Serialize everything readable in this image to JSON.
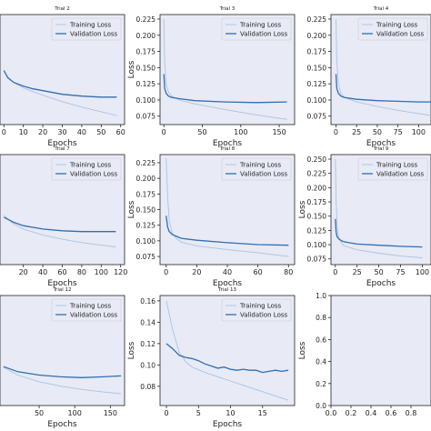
{
  "colors": {
    "panel_bg": "#e8eaf6",
    "training": "#a9c4e0",
    "validation": "#2f6fb0",
    "axis": "#222222"
  },
  "chart_data": [
    {
      "type": "line",
      "title": "Trial 2",
      "xlabel": "Epochs",
      "ylabel": "",
      "xlim": [
        -2,
        62
      ],
      "ylim": [
        0.035,
        0.155
      ],
      "xticks": [
        0,
        10,
        20,
        30,
        40,
        50,
        60
      ],
      "yticks": [],
      "legend": "top-right",
      "series": [
        {
          "name": "Training Loss",
          "x": [
            0,
            2,
            5,
            10,
            15,
            20,
            30,
            40,
            50,
            58
          ],
          "y": [
            0.093,
            0.087,
            0.081,
            0.075,
            0.071,
            0.067,
            0.06,
            0.054,
            0.049,
            0.045
          ]
        },
        {
          "name": "Validation Loss",
          "x": [
            0,
            2,
            5,
            10,
            15,
            20,
            30,
            40,
            50,
            58
          ],
          "y": [
            0.094,
            0.086,
            0.081,
            0.077,
            0.074,
            0.072,
            0.068,
            0.066,
            0.065,
            0.065
          ]
        }
      ]
    },
    {
      "type": "line",
      "title": "Trial 3",
      "xlabel": "Epochs",
      "ylabel": "Loss",
      "xlim": [
        -5,
        170
      ],
      "ylim": [
        0.062,
        0.232
      ],
      "xticks": [
        0,
        50,
        100,
        150
      ],
      "yticks": [
        0.075,
        0.1,
        0.125,
        0.15,
        0.175,
        0.2,
        0.225
      ],
      "legend": "top-right",
      "series": [
        {
          "name": "Training Loss",
          "x": [
            0,
            1,
            3,
            6,
            10,
            20,
            40,
            80,
            120,
            160
          ],
          "y": [
            0.225,
            0.16,
            0.125,
            0.112,
            0.106,
            0.1,
            0.094,
            0.085,
            0.077,
            0.07
          ]
        },
        {
          "name": "Validation Loss",
          "x": [
            0,
            1,
            3,
            6,
            10,
            20,
            40,
            80,
            120,
            160
          ],
          "y": [
            0.14,
            0.118,
            0.11,
            0.106,
            0.104,
            0.102,
            0.099,
            0.097,
            0.096,
            0.097
          ]
        }
      ]
    },
    {
      "type": "line",
      "title": "Trial 4",
      "xlabel": "Epochs",
      "ylabel": "",
      "xlim": [
        -6,
        115
      ],
      "ylim": [
        0.062,
        0.232
      ],
      "xticks": [
        0,
        25,
        50,
        75,
        100
      ],
      "yticks": [
        0.075,
        0.1,
        0.125,
        0.15,
        0.175,
        0.2,
        0.225
      ],
      "legend": "top-right",
      "series": [
        {
          "name": "Training Loss",
          "x": [
            0,
            1,
            3,
            6,
            10,
            25,
            50,
            75,
            100,
            115
          ],
          "y": [
            0.225,
            0.16,
            0.125,
            0.11,
            0.104,
            0.097,
            0.09,
            0.084,
            0.079,
            0.076
          ]
        },
        {
          "name": "Validation Loss",
          "x": [
            0,
            1,
            3,
            6,
            10,
            25,
            50,
            75,
            100,
            115
          ],
          "y": [
            0.14,
            0.118,
            0.11,
            0.106,
            0.104,
            0.101,
            0.099,
            0.098,
            0.097,
            0.097
          ]
        }
      ]
    },
    {
      "type": "line",
      "title": "Trial 7",
      "xlabel": "Epochs",
      "ylabel": "",
      "xlim": [
        -4,
        124
      ],
      "ylim": [
        0.04,
        0.17
      ],
      "xticks": [
        20,
        40,
        60,
        80,
        100,
        120
      ],
      "yticks": [],
      "legend": "top-right",
      "series": [
        {
          "name": "Training Loss",
          "x": [
            0,
            10,
            20,
            40,
            60,
            80,
            100,
            115
          ],
          "y": [
            0.098,
            0.088,
            0.082,
            0.075,
            0.07,
            0.066,
            0.063,
            0.061
          ]
        },
        {
          "name": "Validation Loss",
          "x": [
            0,
            10,
            20,
            40,
            60,
            80,
            100,
            115
          ],
          "y": [
            0.096,
            0.09,
            0.086,
            0.082,
            0.08,
            0.079,
            0.079,
            0.079
          ]
        }
      ]
    },
    {
      "type": "line",
      "title": "Trial 8",
      "xlabel": "Epochs",
      "ylabel": "Loss",
      "xlim": [
        -4,
        84
      ],
      "ylim": [
        0.062,
        0.238
      ],
      "xticks": [
        0,
        20,
        40,
        60,
        80
      ],
      "yticks": [
        0.075,
        0.1,
        0.125,
        0.15,
        0.175,
        0.2,
        0.225
      ],
      "legend": "top-right",
      "series": [
        {
          "name": "Training Loss",
          "x": [
            0,
            1,
            2,
            4,
            7,
            10,
            20,
            40,
            60,
            80
          ],
          "y": [
            0.232,
            0.17,
            0.132,
            0.112,
            0.103,
            0.098,
            0.092,
            0.086,
            0.081,
            0.075
          ]
        },
        {
          "name": "Validation Loss",
          "x": [
            0,
            1,
            2,
            4,
            7,
            10,
            20,
            40,
            60,
            80
          ],
          "y": [
            0.14,
            0.122,
            0.115,
            0.11,
            0.107,
            0.104,
            0.101,
            0.097,
            0.094,
            0.093
          ]
        }
      ]
    },
    {
      "type": "line",
      "title": "Trial 9",
      "xlabel": "Epochs",
      "ylabel": "Loss",
      "xlim": [
        -5,
        110
      ],
      "ylim": [
        0.065,
        0.258
      ],
      "xticks": [
        0,
        25,
        50,
        75,
        100
      ],
      "yticks": [
        0.075,
        0.1,
        0.125,
        0.15,
        0.175,
        0.2,
        0.225,
        0.25
      ],
      "legend": "top-right",
      "series": [
        {
          "name": "Training Loss",
          "x": [
            0,
            1,
            2,
            4,
            7,
            10,
            25,
            50,
            75,
            100
          ],
          "y": [
            0.25,
            0.175,
            0.135,
            0.112,
            0.103,
            0.098,
            0.091,
            0.085,
            0.08,
            0.077
          ]
        },
        {
          "name": "Validation Loss",
          "x": [
            0,
            1,
            2,
            4,
            7,
            10,
            25,
            50,
            75,
            100
          ],
          "y": [
            0.145,
            0.122,
            0.114,
            0.11,
            0.107,
            0.105,
            0.101,
            0.099,
            0.097,
            0.096
          ]
        }
      ]
    },
    {
      "type": "line",
      "title": "Trial 12",
      "xlabel": "Epochs",
      "ylabel": "",
      "xlim": [
        -5,
        170
      ],
      "ylim": [
        0.04,
        0.17
      ],
      "xticks": [
        50,
        100,
        150
      ],
      "yticks": [],
      "legend": "top-right",
      "series": [
        {
          "name": "Training Loss",
          "x": [
            0,
            20,
            50,
            80,
            110,
            140,
            165
          ],
          "y": [
            0.085,
            0.076,
            0.068,
            0.063,
            0.059,
            0.056,
            0.054
          ]
        },
        {
          "name": "Validation Loss",
          "x": [
            0,
            20,
            50,
            80,
            110,
            140,
            165
          ],
          "y": [
            0.086,
            0.08,
            0.076,
            0.074,
            0.073,
            0.074,
            0.075
          ]
        }
      ]
    },
    {
      "type": "line",
      "title": "Trial 13",
      "xlabel": "Epochs",
      "ylabel": "Loss",
      "xlim": [
        -1,
        20
      ],
      "ylim": [
        0.062,
        0.165
      ],
      "xticks": [
        0,
        5,
        10,
        15
      ],
      "yticks": [
        0.08,
        0.1,
        0.12,
        0.14,
        0.16
      ],
      "legend": "top-right",
      "series": [
        {
          "name": "Training Loss",
          "x": [
            0,
            1,
            2,
            3,
            4,
            6,
            8,
            10,
            12,
            14,
            16,
            18,
            19
          ],
          "y": [
            0.16,
            0.132,
            0.112,
            0.103,
            0.098,
            0.093,
            0.089,
            0.085,
            0.081,
            0.077,
            0.073,
            0.069,
            0.067
          ]
        },
        {
          "name": "Validation Loss",
          "x": [
            0,
            1,
            2,
            3,
            4,
            5,
            6,
            7,
            8,
            9,
            10,
            11,
            12,
            13,
            14,
            15,
            16,
            17,
            18,
            19
          ],
          "y": [
            0.12,
            0.115,
            0.109,
            0.107,
            0.106,
            0.104,
            0.101,
            0.099,
            0.097,
            0.098,
            0.096,
            0.095,
            0.096,
            0.095,
            0.095,
            0.093,
            0.094,
            0.095,
            0.094,
            0.095
          ]
        }
      ]
    },
    {
      "type": "line",
      "title": "",
      "xlabel": "",
      "ylabel": "Loss",
      "xlim": [
        0,
        1
      ],
      "ylim": [
        0,
        1
      ],
      "xticks": [
        0.0,
        0.2,
        0.4,
        0.6,
        0.8
      ],
      "yticks": [
        0.0,
        0.2,
        0.4,
        0.6,
        0.8,
        1.0
      ],
      "legend": "none",
      "series": []
    }
  ]
}
